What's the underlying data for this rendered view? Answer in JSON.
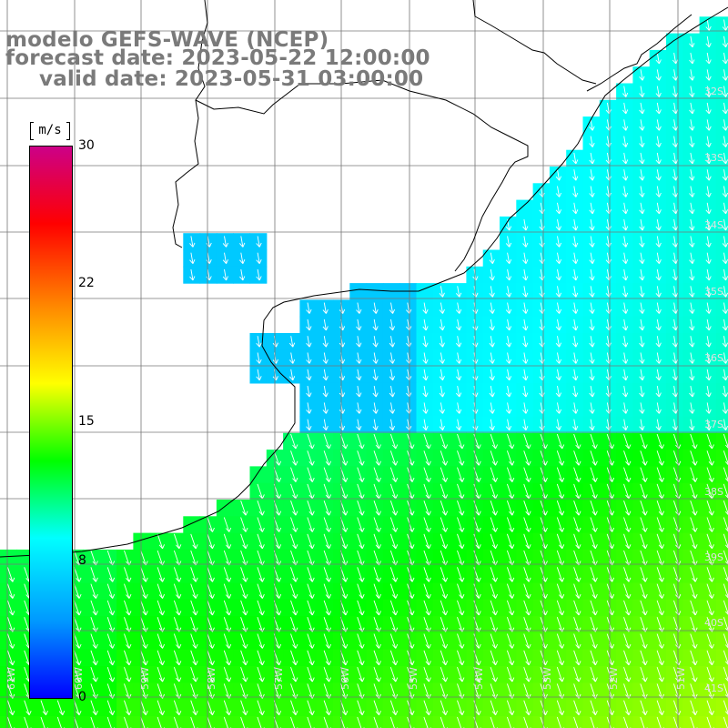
{
  "titles": {
    "model": "modelo GEFS-WAVE (NCEP)",
    "forecast": "forecast date: 2023-05-22 12:00:00",
    "valid": "valid date: 2023-05-31 03:00:00"
  },
  "colorbar": {
    "unit": "m/s",
    "ticks": [
      "30",
      "22",
      "15",
      "8",
      "0"
    ],
    "tick_values": [
      30,
      22,
      15,
      8,
      0
    ],
    "range": [
      0,
      30
    ],
    "colors": [
      "#0000ff",
      "#0099ff",
      "#00ffff",
      "#00ff00",
      "#ffff00",
      "#ff8800",
      "#ff0000",
      "#cc0088"
    ]
  },
  "map": {
    "lat_labels": [
      "32S",
      "33S",
      "34S",
      "35S",
      "36S",
      "37S",
      "38S",
      "39S",
      "40S",
      "41S"
    ],
    "lon_labels": [
      "61W",
      "60W",
      "59W",
      "58W",
      "57W",
      "56W",
      "55W",
      "54W",
      "53W",
      "52W",
      "51W"
    ],
    "field": "wind speed with direction arrows",
    "arrow_direction": "SSE"
  }
}
